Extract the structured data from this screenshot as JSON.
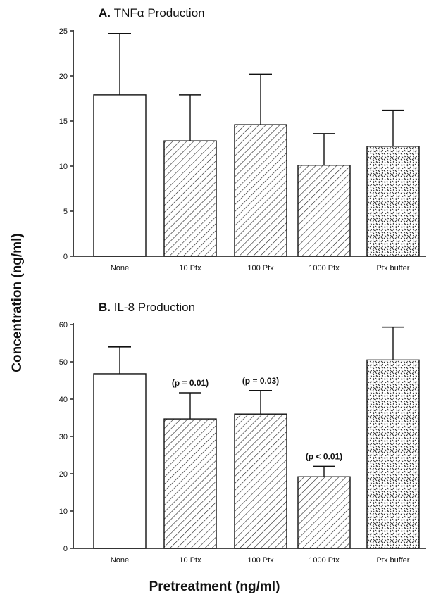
{
  "figure": {
    "ylabel": "Concentration (ng/ml)",
    "xlabel": "Pretreatment (ng/ml)"
  },
  "chart_data": [
    {
      "type": "bar",
      "title_letter": "A.",
      "title_text": "TNFα Production",
      "categories": [
        "None",
        "10 Ptx",
        "100 Ptx",
        "1000 Ptx",
        "Ptx buffer"
      ],
      "values": [
        17.9,
        12.8,
        14.6,
        10.1,
        12.2
      ],
      "error": [
        6.8,
        5.1,
        5.6,
        3.5,
        4.0
      ],
      "patterns": [
        "none",
        "hatch",
        "hatch",
        "hatch",
        "dots"
      ],
      "annotations": [
        "",
        "",
        "",
        "",
        ""
      ],
      "ylim": [
        0,
        25
      ],
      "yticks": [
        0,
        5,
        10,
        15,
        20,
        25
      ]
    },
    {
      "type": "bar",
      "title_letter": "B.",
      "title_text": "IL-8 Production",
      "categories": [
        "None",
        "10 Ptx",
        "100 Ptx",
        "1000 Ptx",
        "Ptx buffer"
      ],
      "values": [
        46.8,
        34.7,
        36.0,
        19.2,
        50.5
      ],
      "error": [
        7.2,
        7.0,
        6.3,
        2.8,
        8.8
      ],
      "patterns": [
        "none",
        "hatch",
        "hatch",
        "hatch",
        "dots"
      ],
      "annotations": [
        "",
        "(p = 0.01)",
        "(p = 0.03)",
        "(p < 0.01)",
        ""
      ],
      "ylim": [
        0,
        60
      ],
      "yticks": [
        0,
        10,
        20,
        30,
        40,
        50,
        60
      ]
    }
  ]
}
